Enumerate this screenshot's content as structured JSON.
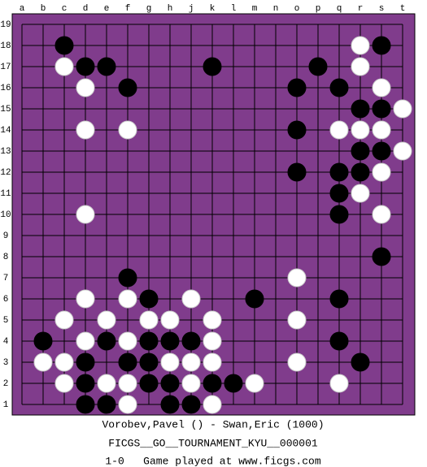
{
  "board": {
    "columns": [
      "a",
      "b",
      "c",
      "d",
      "e",
      "f",
      "g",
      "h",
      "j",
      "k",
      "l",
      "m",
      "n",
      "o",
      "p",
      "q",
      "r",
      "s",
      "t"
    ],
    "rows": [
      19,
      18,
      17,
      16,
      15,
      14,
      13,
      12,
      11,
      10,
      9,
      8,
      7,
      6,
      5,
      4,
      3,
      2,
      1
    ],
    "board_color": "#803c8c",
    "stones": [
      {
        "col": "c",
        "row": 18,
        "color": "black"
      },
      {
        "col": "r",
        "row": 18,
        "color": "white"
      },
      {
        "col": "s",
        "row": 18,
        "color": "black"
      },
      {
        "col": "c",
        "row": 17,
        "color": "white"
      },
      {
        "col": "d",
        "row": 17,
        "color": "black"
      },
      {
        "col": "e",
        "row": 17,
        "color": "black"
      },
      {
        "col": "k",
        "row": 17,
        "color": "black"
      },
      {
        "col": "p",
        "row": 17,
        "color": "black"
      },
      {
        "col": "r",
        "row": 17,
        "color": "white"
      },
      {
        "col": "d",
        "row": 16,
        "color": "white"
      },
      {
        "col": "f",
        "row": 16,
        "color": "black"
      },
      {
        "col": "o",
        "row": 16,
        "color": "black"
      },
      {
        "col": "q",
        "row": 16,
        "color": "black"
      },
      {
        "col": "s",
        "row": 16,
        "color": "white"
      },
      {
        "col": "r",
        "row": 15,
        "color": "black"
      },
      {
        "col": "s",
        "row": 15,
        "color": "black"
      },
      {
        "col": "t",
        "row": 15,
        "color": "white"
      },
      {
        "col": "d",
        "row": 14,
        "color": "white"
      },
      {
        "col": "f",
        "row": 14,
        "color": "white"
      },
      {
        "col": "o",
        "row": 14,
        "color": "black"
      },
      {
        "col": "q",
        "row": 14,
        "color": "white"
      },
      {
        "col": "r",
        "row": 14,
        "color": "white"
      },
      {
        "col": "s",
        "row": 14,
        "color": "white"
      },
      {
        "col": "r",
        "row": 13,
        "color": "black"
      },
      {
        "col": "s",
        "row": 13,
        "color": "black"
      },
      {
        "col": "t",
        "row": 13,
        "color": "white"
      },
      {
        "col": "o",
        "row": 12,
        "color": "black"
      },
      {
        "col": "q",
        "row": 12,
        "color": "black"
      },
      {
        "col": "r",
        "row": 12,
        "color": "black"
      },
      {
        "col": "s",
        "row": 12,
        "color": "white"
      },
      {
        "col": "q",
        "row": 11,
        "color": "black"
      },
      {
        "col": "r",
        "row": 11,
        "color": "white"
      },
      {
        "col": "d",
        "row": 10,
        "color": "white"
      },
      {
        "col": "q",
        "row": 10,
        "color": "black"
      },
      {
        "col": "s",
        "row": 10,
        "color": "white"
      },
      {
        "col": "s",
        "row": 8,
        "color": "black"
      },
      {
        "col": "f",
        "row": 7,
        "color": "black"
      },
      {
        "col": "o",
        "row": 7,
        "color": "white"
      },
      {
        "col": "d",
        "row": 6,
        "color": "white"
      },
      {
        "col": "f",
        "row": 6,
        "color": "white"
      },
      {
        "col": "g",
        "row": 6,
        "color": "black"
      },
      {
        "col": "j",
        "row": 6,
        "color": "white"
      },
      {
        "col": "m",
        "row": 6,
        "color": "black"
      },
      {
        "col": "q",
        "row": 6,
        "color": "black"
      },
      {
        "col": "c",
        "row": 5,
        "color": "white"
      },
      {
        "col": "e",
        "row": 5,
        "color": "white"
      },
      {
        "col": "g",
        "row": 5,
        "color": "white"
      },
      {
        "col": "h",
        "row": 5,
        "color": "white"
      },
      {
        "col": "k",
        "row": 5,
        "color": "white"
      },
      {
        "col": "o",
        "row": 5,
        "color": "white"
      },
      {
        "col": "b",
        "row": 4,
        "color": "black"
      },
      {
        "col": "d",
        "row": 4,
        "color": "white"
      },
      {
        "col": "e",
        "row": 4,
        "color": "black"
      },
      {
        "col": "f",
        "row": 4,
        "color": "white"
      },
      {
        "col": "g",
        "row": 4,
        "color": "black"
      },
      {
        "col": "h",
        "row": 4,
        "color": "black"
      },
      {
        "col": "j",
        "row": 4,
        "color": "black"
      },
      {
        "col": "k",
        "row": 4,
        "color": "white"
      },
      {
        "col": "q",
        "row": 4,
        "color": "black"
      },
      {
        "col": "b",
        "row": 3,
        "color": "white"
      },
      {
        "col": "c",
        "row": 3,
        "color": "white"
      },
      {
        "col": "d",
        "row": 3,
        "color": "black"
      },
      {
        "col": "f",
        "row": 3,
        "color": "black"
      },
      {
        "col": "g",
        "row": 3,
        "color": "black"
      },
      {
        "col": "h",
        "row": 3,
        "color": "white"
      },
      {
        "col": "j",
        "row": 3,
        "color": "white"
      },
      {
        "col": "k",
        "row": 3,
        "color": "white"
      },
      {
        "col": "o",
        "row": 3,
        "color": "white"
      },
      {
        "col": "r",
        "row": 3,
        "color": "black"
      },
      {
        "col": "c",
        "row": 2,
        "color": "white"
      },
      {
        "col": "d",
        "row": 2,
        "color": "black"
      },
      {
        "col": "e",
        "row": 2,
        "color": "white"
      },
      {
        "col": "f",
        "row": 2,
        "color": "white"
      },
      {
        "col": "g",
        "row": 2,
        "color": "black"
      },
      {
        "col": "h",
        "row": 2,
        "color": "black"
      },
      {
        "col": "j",
        "row": 2,
        "color": "white"
      },
      {
        "col": "k",
        "row": 2,
        "color": "black"
      },
      {
        "col": "l",
        "row": 2,
        "color": "black"
      },
      {
        "col": "m",
        "row": 2,
        "color": "white"
      },
      {
        "col": "q",
        "row": 2,
        "color": "white"
      },
      {
        "col": "d",
        "row": 1,
        "color": "black"
      },
      {
        "col": "e",
        "row": 1,
        "color": "black"
      },
      {
        "col": "f",
        "row": 1,
        "color": "white"
      },
      {
        "col": "h",
        "row": 1,
        "color": "black"
      },
      {
        "col": "j",
        "row": 1,
        "color": "black"
      },
      {
        "col": "k",
        "row": 1,
        "color": "white"
      }
    ]
  },
  "footer": {
    "players": "Vorobev,Pavel () - Swan,Eric (1000)",
    "event": "FICGS__GO__TOURNAMENT_KYU__000001",
    "result": "1-0   Game played at www.ficgs.com"
  }
}
